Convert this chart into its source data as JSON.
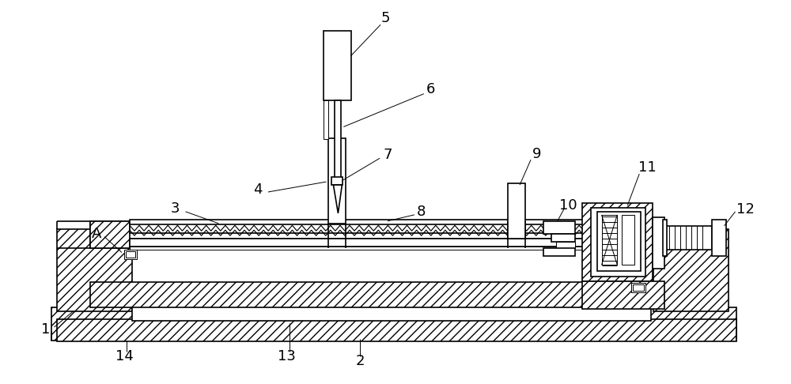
{
  "bg_color": "#ffffff",
  "figsize": [
    10.0,
    4.86
  ],
  "dpi": 100,
  "lw_main": 1.2,
  "lw_thin": 0.7,
  "label_fs": 13
}
